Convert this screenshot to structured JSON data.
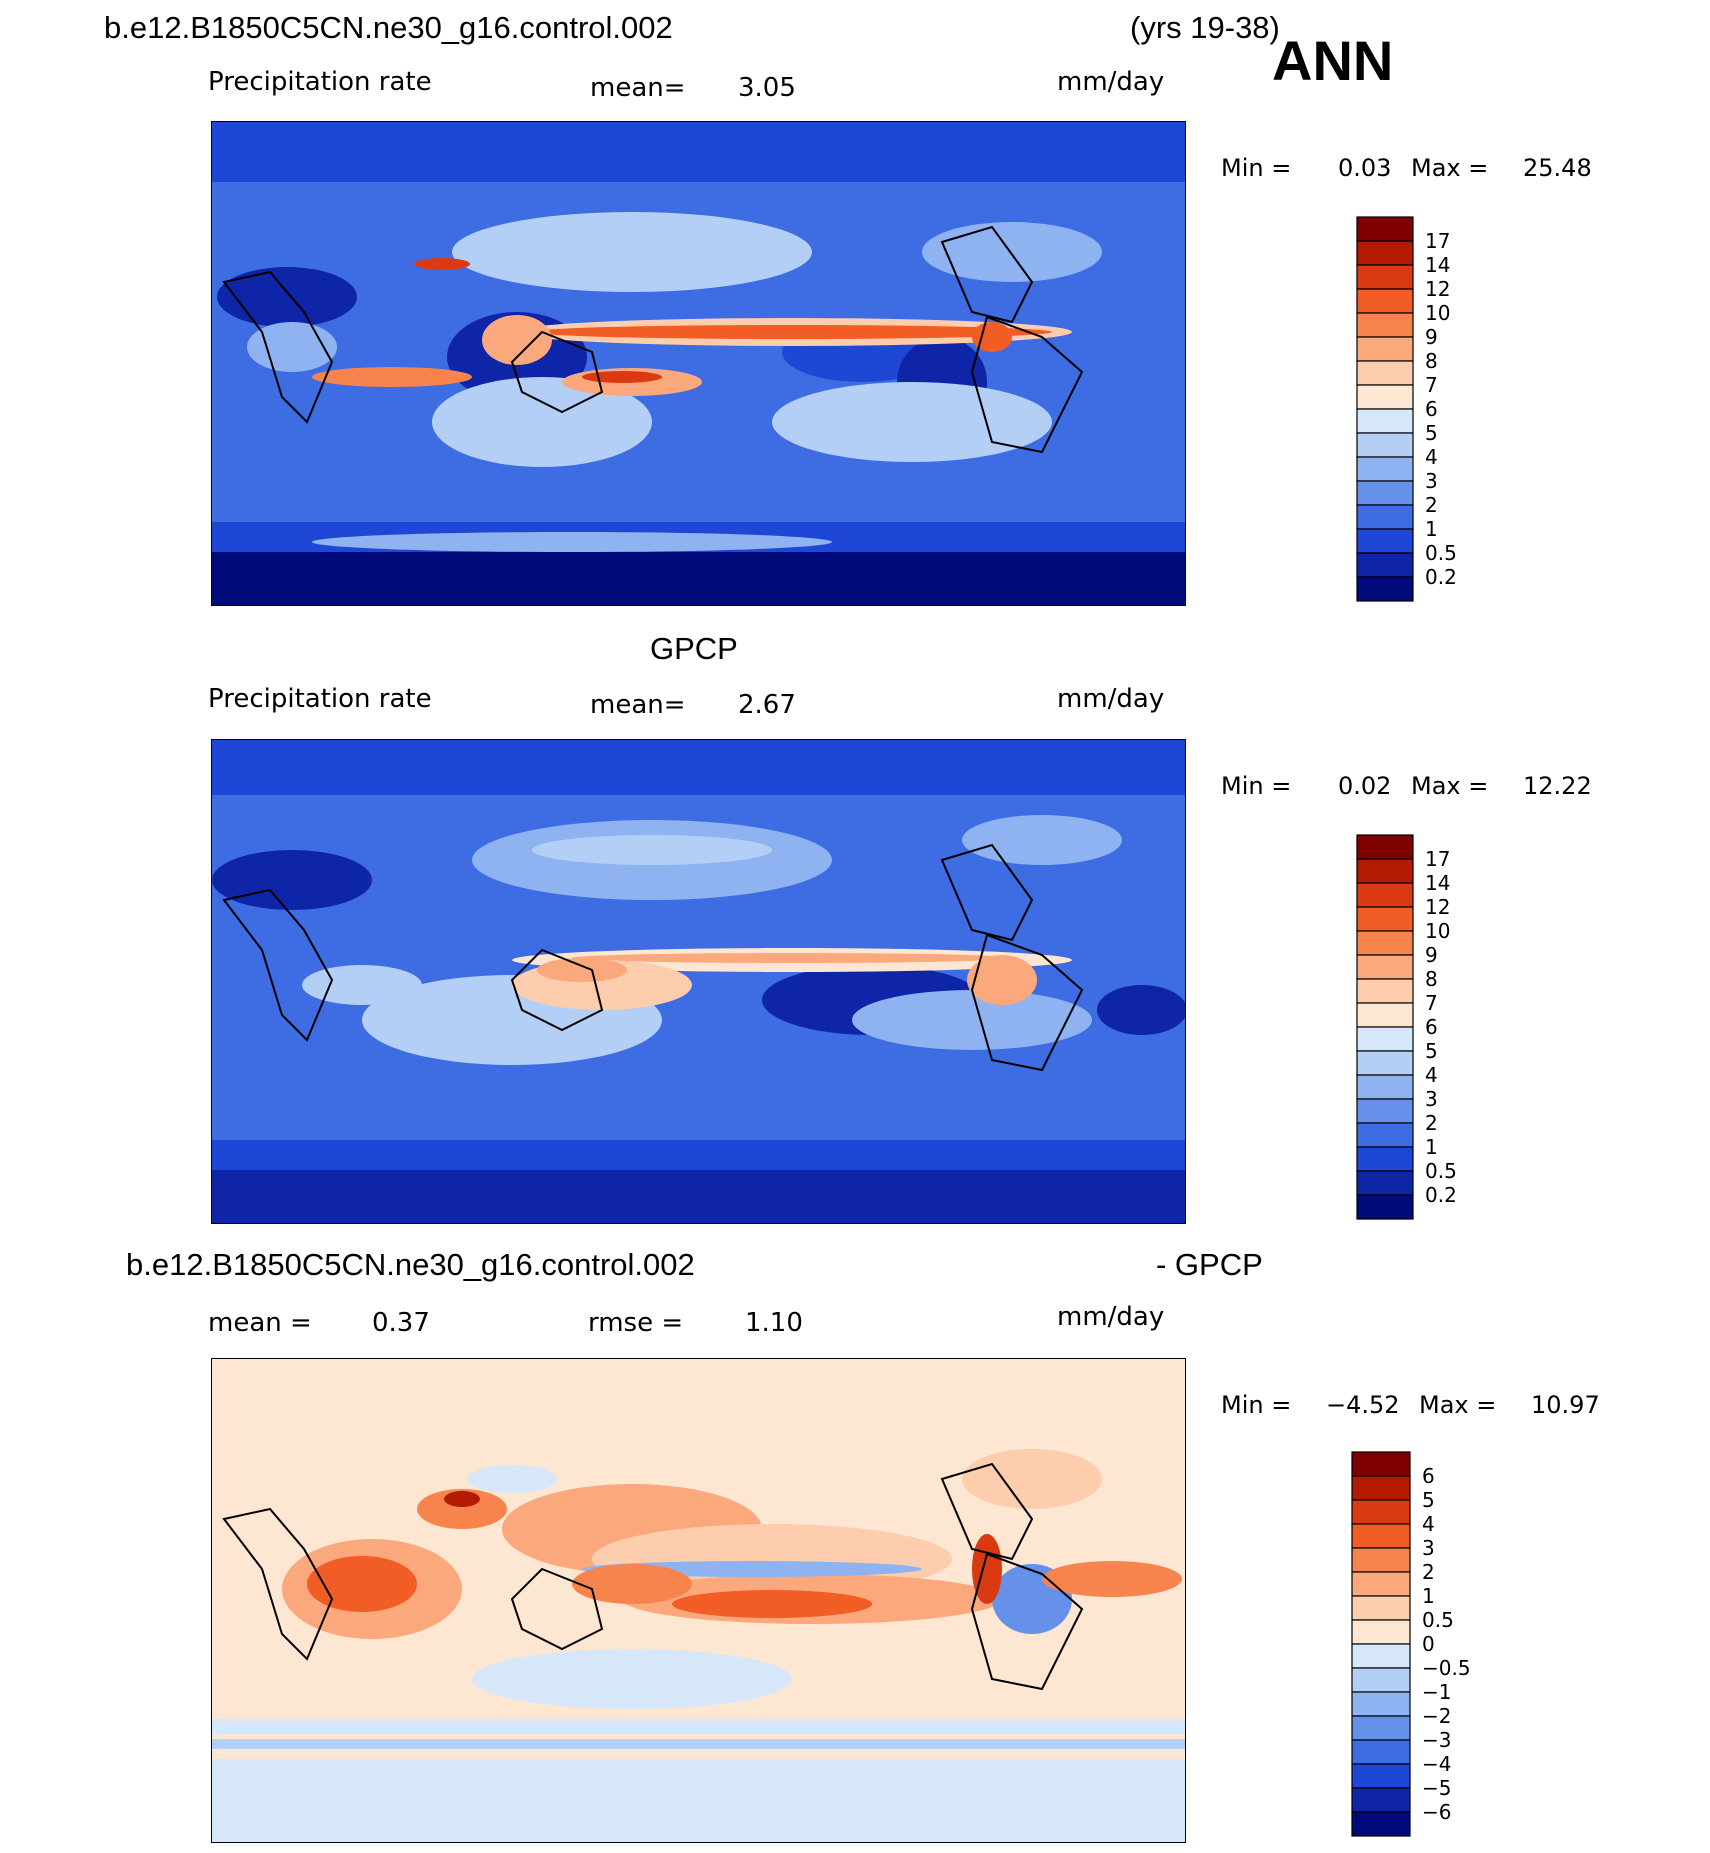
{
  "figure": {
    "case_name": "b.e12.B1850C5CN.ne30_g16.control.002",
    "years": "(yrs 19-38)",
    "season": "ANN",
    "obs_title": "GPCP",
    "diff_case_name": "b.e12.B1850C5CN.ne30_g16.control.002",
    "diff_obs": "- GPCP"
  },
  "panels": [
    {
      "var_label": "Precipitation rate",
      "mean_label": "mean=",
      "mean_value": "3.05",
      "units": "mm/day",
      "min_label": "Min  =",
      "min_value": "0.03",
      "max_label": "Max  =",
      "max_value": "25.48",
      "colorbar": [
        "17",
        "14",
        "12",
        "10",
        "9",
        "8",
        "7",
        "6",
        "5",
        "4",
        "3",
        "2",
        "1",
        "0.5",
        "0.2"
      ],
      "colors": [
        "#7f0000",
        "#b31b00",
        "#d93a12",
        "#f25c25",
        "#f7844d",
        "#fba87c",
        "#fdcdae",
        "#fde6d2",
        "#d6e7fa",
        "#b4cff5",
        "#8fb3f0",
        "#6691ea",
        "#3d6ce3",
        "#1f47d6",
        "#0d25a6",
        "#000a7a"
      ]
    },
    {
      "var_label": "Precipitation rate",
      "mean_label": "mean=",
      "mean_value": "2.67",
      "units": "mm/day",
      "min_label": "Min  =",
      "min_value": "0.02",
      "max_label": "Max  =",
      "max_value": "12.22",
      "colorbar": [
        "17",
        "14",
        "12",
        "10",
        "9",
        "8",
        "7",
        "6",
        "5",
        "4",
        "3",
        "2",
        "1",
        "0.5",
        "0.2"
      ],
      "colors": [
        "#7f0000",
        "#b31b00",
        "#d93a12",
        "#f25c25",
        "#f7844d",
        "#fba87c",
        "#fdcdae",
        "#fde6d2",
        "#d6e7fa",
        "#b4cff5",
        "#8fb3f0",
        "#6691ea",
        "#3d6ce3",
        "#1f47d6",
        "#0d25a6",
        "#000a7a"
      ]
    },
    {
      "mean_label": "mean  =",
      "mean_value": "0.37",
      "rmse_label": "rmse  =",
      "rmse_value": "1.10",
      "units": "mm/day",
      "min_label": "Min  =",
      "min_value": "−4.52",
      "max_label": "Max  =",
      "max_value": "10.97",
      "colorbar": [
        "6",
        "5",
        "4",
        "3",
        "2",
        "1",
        "0.5",
        "0",
        "−0.5",
        "−1",
        "−2",
        "−3",
        "−4",
        "−5",
        "−6"
      ],
      "colors": [
        "#7f0000",
        "#b31b00",
        "#d93a12",
        "#f25c25",
        "#f7844d",
        "#fba87c",
        "#fdcdae",
        "#fde6d2",
        "#d6e7fa",
        "#b4cff5",
        "#8fb3f0",
        "#6691ea",
        "#3d6ce3",
        "#1f47d6",
        "#0d25a6",
        "#000a7a"
      ]
    }
  ],
  "chart_data": [
    {
      "type": "heatmap",
      "units": "mm/day",
      "mean": 3.05,
      "min": 0.03,
      "max": 25.48,
      "levels": [
        0.2,
        0.5,
        1,
        2,
        3,
        4,
        5,
        6,
        7,
        8,
        9,
        10,
        12,
        14,
        17
      ]
    },
    {
      "type": "heatmap",
      "units": "mm/day",
      "mean": 2.67,
      "min": 0.02,
      "max": 12.22,
      "levels": [
        0.2,
        0.5,
        1,
        2,
        3,
        4,
        5,
        6,
        7,
        8,
        9,
        10,
        12,
        14,
        17
      ]
    },
    {
      "type": "heatmap",
      "units": "mm/day",
      "mean": 0.37,
      "rmse": 1.1,
      "min": -4.52,
      "max": 10.97,
      "levels": [
        -6,
        -5,
        -4,
        -3,
        -2,
        -1,
        -0.5,
        0,
        0.5,
        1,
        2,
        3,
        4,
        5,
        6
      ]
    }
  ]
}
